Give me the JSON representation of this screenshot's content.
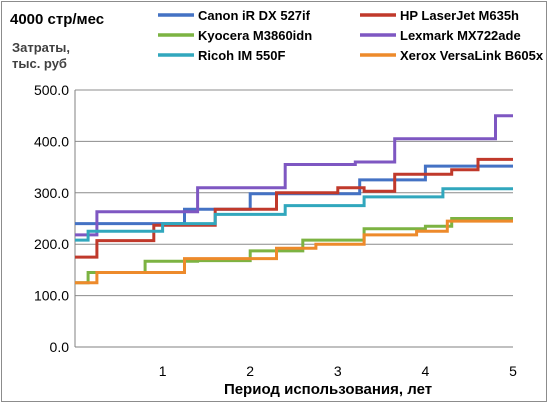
{
  "chart_data": {
    "type": "line",
    "title": "4000 стр/мес",
    "ylabel": [
      "Затраты,",
      "тыс. руб"
    ],
    "xlabel": "Период использования, лет",
    "xlim": [
      0,
      5
    ],
    "ylim": [
      0,
      500
    ],
    "xticks": [
      1,
      2,
      3,
      4,
      5
    ],
    "yticks": [
      0,
      100,
      200,
      300,
      400,
      500
    ],
    "ytick_labels": [
      "0.0",
      "100.0",
      "200.0",
      "300.0",
      "400.0",
      "500.0"
    ],
    "grid": "horizontal",
    "legend_position": "top",
    "series": [
      {
        "name": "Canon iR DX 527if",
        "color": "#4472c4",
        "points": [
          [
            0,
            240
          ],
          [
            0.25,
            240
          ],
          [
            0.25,
            240
          ],
          [
            1.25,
            240
          ],
          [
            1.25,
            268
          ],
          [
            2.0,
            268
          ],
          [
            2.0,
            298
          ],
          [
            3.25,
            298
          ],
          [
            3.25,
            325
          ],
          [
            4.0,
            325
          ],
          [
            4.0,
            352
          ],
          [
            5.0,
            352
          ]
        ]
      },
      {
        "name": "HP LaserJet M635h",
        "color": "#c0392b",
        "points": [
          [
            0,
            175
          ],
          [
            0.25,
            175
          ],
          [
            0.25,
            207
          ],
          [
            0.9,
            207
          ],
          [
            0.9,
            237
          ],
          [
            1.6,
            237
          ],
          [
            1.6,
            268
          ],
          [
            2.3,
            268
          ],
          [
            2.3,
            300
          ],
          [
            3.0,
            300
          ],
          [
            3.0,
            310
          ],
          [
            3.3,
            310
          ],
          [
            3.3,
            303
          ],
          [
            3.65,
            303
          ],
          [
            3.65,
            336
          ],
          [
            4.3,
            336
          ],
          [
            4.3,
            345
          ],
          [
            4.6,
            345
          ],
          [
            4.6,
            365
          ],
          [
            5.0,
            365
          ]
        ]
      },
      {
        "name": "Kyocera M3860idn",
        "color": "#7cb342",
        "points": [
          [
            0,
            125
          ],
          [
            0.15,
            125
          ],
          [
            0.15,
            145
          ],
          [
            0.8,
            145
          ],
          [
            0.8,
            167
          ],
          [
            1.4,
            167
          ],
          [
            1.4,
            168
          ],
          [
            2.0,
            168
          ],
          [
            2.0,
            187
          ],
          [
            2.6,
            187
          ],
          [
            2.6,
            208
          ],
          [
            3.3,
            208
          ],
          [
            3.3,
            230
          ],
          [
            4.0,
            230
          ],
          [
            4.0,
            235
          ],
          [
            4.3,
            235
          ],
          [
            4.3,
            250
          ],
          [
            5.0,
            250
          ]
        ]
      },
      {
        "name": "Lexmark MX722ade",
        "color": "#7e57c2",
        "points": [
          [
            0,
            218
          ],
          [
            0.25,
            218
          ],
          [
            0.25,
            263
          ],
          [
            1.4,
            263
          ],
          [
            1.4,
            310
          ],
          [
            2.4,
            310
          ],
          [
            2.4,
            355
          ],
          [
            3.2,
            355
          ],
          [
            3.2,
            360
          ],
          [
            3.65,
            360
          ],
          [
            3.65,
            405
          ],
          [
            4.8,
            405
          ],
          [
            4.8,
            450
          ],
          [
            5.0,
            450
          ]
        ]
      },
      {
        "name": "Ricoh IM 550F",
        "color": "#31a7bd",
        "points": [
          [
            0,
            208
          ],
          [
            0.15,
            208
          ],
          [
            0.15,
            225
          ],
          [
            1.0,
            225
          ],
          [
            1.0,
            240
          ],
          [
            1.6,
            240
          ],
          [
            1.6,
            258
          ],
          [
            2.4,
            258
          ],
          [
            2.4,
            275
          ],
          [
            3.3,
            275
          ],
          [
            3.3,
            292
          ],
          [
            4.2,
            292
          ],
          [
            4.2,
            308
          ],
          [
            5.0,
            308
          ]
        ]
      },
      {
        "name": "Xerox VersaLink B605x",
        "color": "#ed8a2b",
        "points": [
          [
            0,
            125
          ],
          [
            0.25,
            125
          ],
          [
            0.25,
            145
          ],
          [
            1.25,
            145
          ],
          [
            1.25,
            172
          ],
          [
            2.3,
            172
          ],
          [
            2.3,
            192
          ],
          [
            2.75,
            192
          ],
          [
            2.75,
            200
          ],
          [
            3.3,
            200
          ],
          [
            3.3,
            218
          ],
          [
            3.9,
            218
          ],
          [
            3.9,
            225
          ],
          [
            4.25,
            225
          ],
          [
            4.25,
            245
          ],
          [
            5.0,
            245
          ]
        ]
      }
    ]
  }
}
